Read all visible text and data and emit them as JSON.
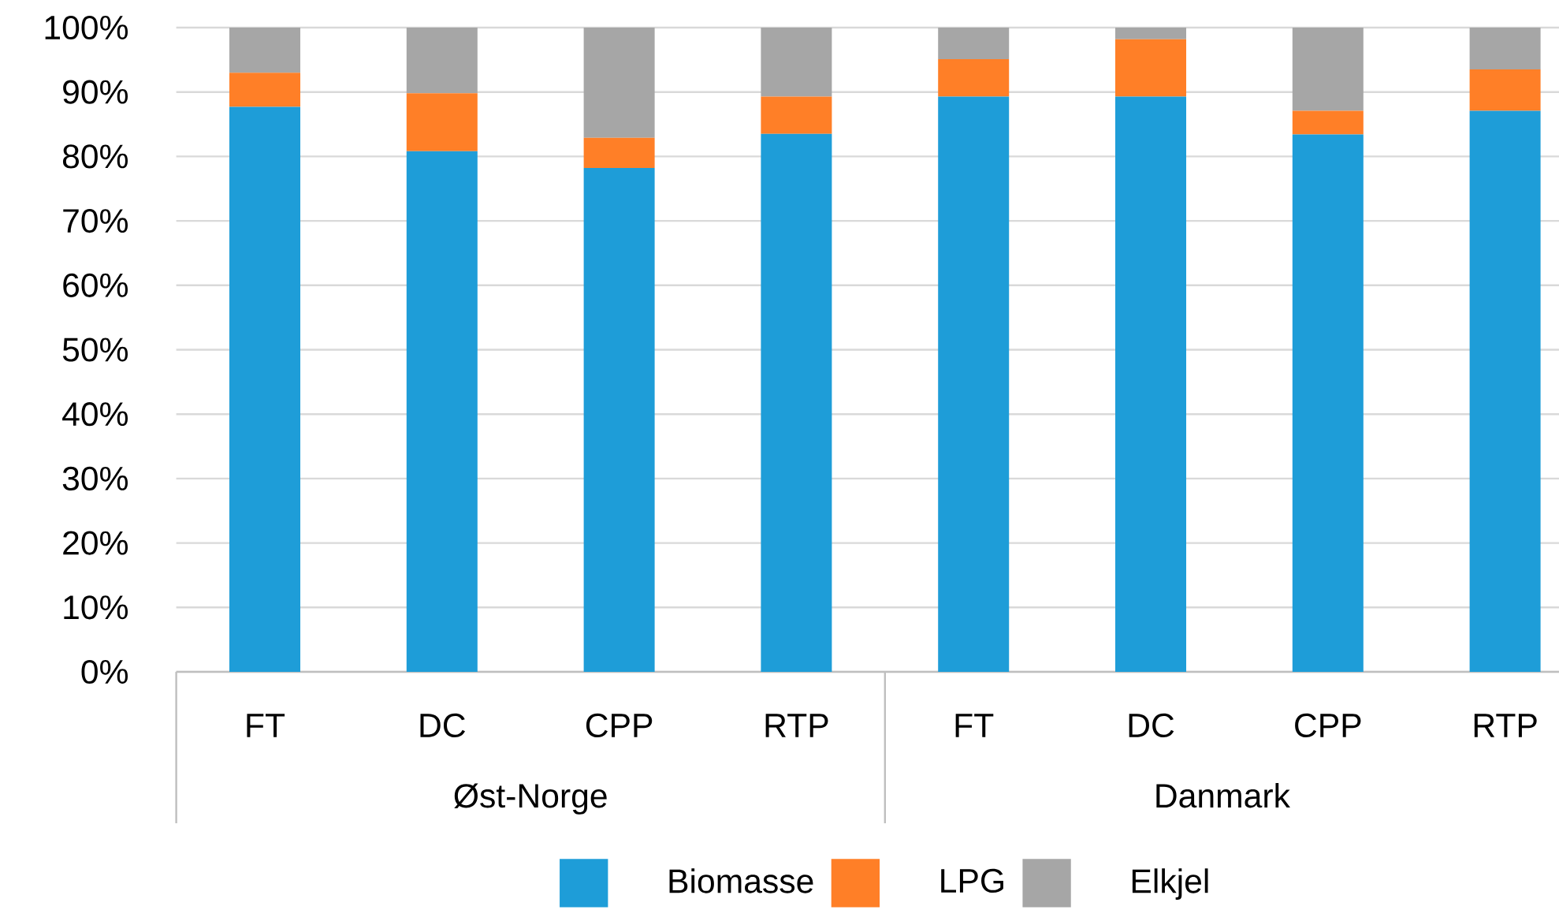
{
  "chart_data": {
    "type": "bar",
    "stacked": true,
    "categories": [
      "FT",
      "DC",
      "CPP",
      "RTP",
      "FT",
      "DC",
      "CPP",
      "RTP"
    ],
    "annotations": [
      "Øst-Norge",
      "Danmark"
    ],
    "series": [
      {
        "name": "Biomasse",
        "color": "#1e9dd8",
        "values": [
          87.7,
          80.8,
          78.2,
          83.5,
          89.3,
          89.3,
          83.4,
          87.1
        ]
      },
      {
        "name": "LPG",
        "color": "#ff7f27",
        "values": [
          5.3,
          9.0,
          4.7,
          5.8,
          5.8,
          8.9,
          3.7,
          6.4
        ]
      },
      {
        "name": "Elkjel",
        "color": "#a6a6a6",
        "values": [
          7.0,
          10.2,
          17.1,
          10.7,
          4.9,
          1.8,
          12.9,
          6.5
        ]
      }
    ],
    "ylim": [
      0,
      100
    ],
    "yticks": [
      {
        "value": 0,
        "label": "0%"
      },
      {
        "value": 10,
        "label": "10%"
      },
      {
        "value": 20,
        "label": "20%"
      },
      {
        "value": 30,
        "label": "30%"
      },
      {
        "value": 40,
        "label": "40%"
      },
      {
        "value": 50,
        "label": "50%"
      },
      {
        "value": 60,
        "label": "60%"
      },
      {
        "value": 70,
        "label": "70%"
      },
      {
        "value": 80,
        "label": "80%"
      },
      {
        "value": 90,
        "label": "90%"
      },
      {
        "value": 100,
        "label": "100%"
      }
    ],
    "grid": "y",
    "legend": "bottom"
  }
}
